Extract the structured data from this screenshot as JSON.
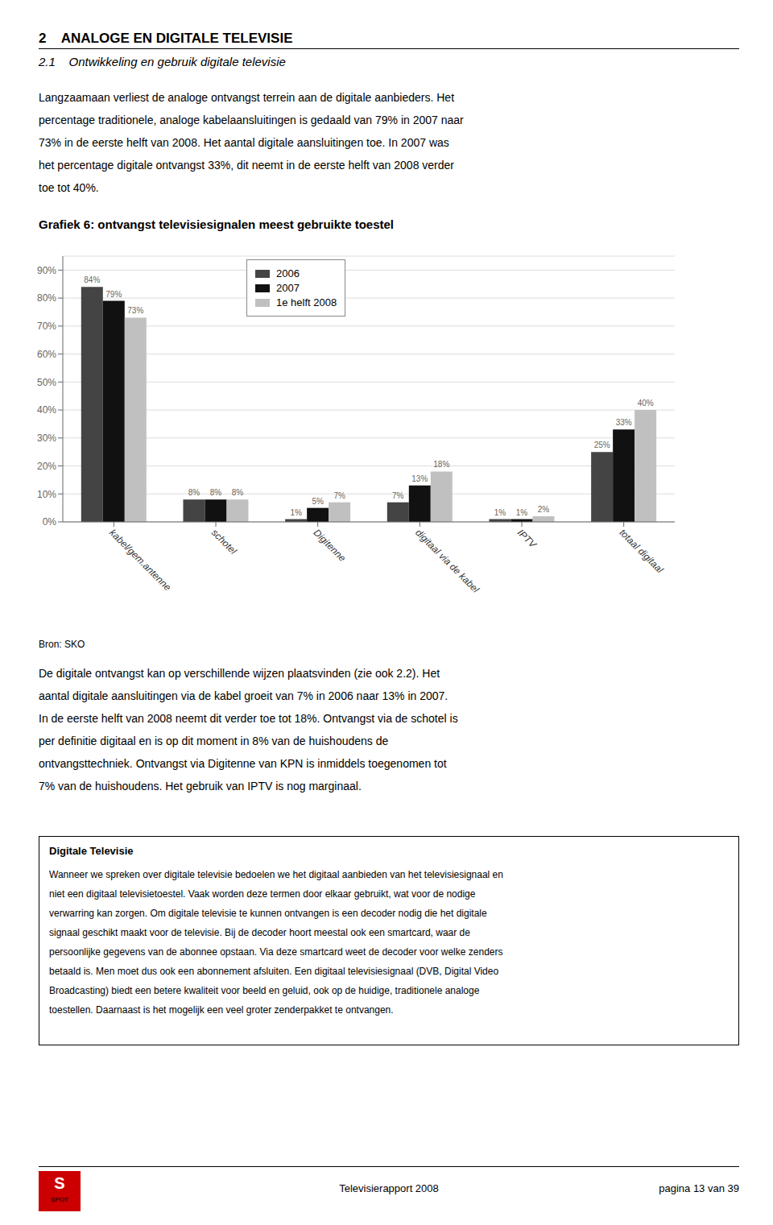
{
  "chart_data": {
    "type": "bar",
    "title": "Grafiek 6: ontvangst televisiesignalen meest gebruikte toestel",
    "categories": [
      "kabel/gem.antenne",
      "schotel",
      "Digitenne",
      "digitaal via de kabel",
      "IPTV",
      "totaal digitaal"
    ],
    "series": [
      {
        "name": "2006",
        "color": "#444444",
        "values": [
          84,
          8,
          1,
          7,
          1,
          25
        ],
        "value_labels": [
          "84%",
          "8%",
          "1%",
          "7%",
          "1%",
          "25%"
        ]
      },
      {
        "name": "2007",
        "color": "#111111",
        "values": [
          79,
          8,
          5,
          13,
          1,
          33
        ],
        "value_labels": [
          "79%",
          "8%",
          "5%",
          "13%",
          "1%",
          "33%"
        ]
      },
      {
        "name": "1e helft 2008",
        "color": "#c0c0c0",
        "values": [
          73,
          8,
          7,
          18,
          2,
          40
        ],
        "value_labels": [
          "73%",
          "8%",
          "7%",
          "18%",
          "2%",
          "40%"
        ]
      }
    ],
    "ylim": [
      0,
      95
    ],
    "yticks": [
      {
        "value": 0,
        "label": "0%"
      },
      {
        "value": 10,
        "label": "10%"
      },
      {
        "value": 20,
        "label": "20%"
      },
      {
        "value": 30,
        "label": "30%"
      },
      {
        "value": 40,
        "label": "40%"
      },
      {
        "value": 50,
        "label": "50%"
      },
      {
        "value": 60,
        "label": "60%"
      },
      {
        "value": 70,
        "label": "70%"
      },
      {
        "value": 80,
        "label": "80%"
      },
      {
        "value": 90,
        "label": "90%"
      }
    ],
    "grid": true,
    "legend": "top",
    "data_labels": true
  },
  "page": {
    "heading1": "2    ANALOGE EN DIGITALE TELEVISIE",
    "heading2": "2.1    Ontwikkeling en gebruik digitale televisie",
    "body_text1_lines": [
      "Langzaamaan verliest de analoge ontvangst terrein aan de digitale aanbieders. Het",
      "percentage traditionele, analoge kabelaansluitingen is gedaald van 79% in 2007 naar",
      "73% in de eerste helft van 2008. Het aantal digitale aansluitingen toe. In 2007 was",
      "het percentage digitale ontvangst 33%, dit neemt in de eerste helft van 2008 verder",
      "toe tot 40%."
    ],
    "source_text": "Bron: SKO",
    "body_text2_lines": [
      "De digitale ontvangst kan op verschillende wijzen plaatsvinden (zie ook 2.2). Het",
      "aantal digitale aansluitingen via de kabel groeit van 7% in 2006 naar 13% in 2007.",
      "In de eerste helft van 2008 neemt dit verder toe tot 18%. Ontvangst via de schotel is",
      "per definitie digitaal en is op dit moment in 8% van de huishoudens de",
      "ontvangsttechniek. Ontvangst via Digitenne van KPN is inmiddels toegenomen tot",
      "7% van de huishoudens. Het gebruik van IPTV is nog marginaal."
    ],
    "footer_box_title": "Digitale Televisie",
    "footer_box_lines": [
      "Wanneer we spreken over digitale televisie bedoelen we het digitaal aanbieden van het televisie​signaal en",
      "niet een digitaal televisie​toestel. Vaak worden deze termen door elkaar gebruikt, wat voor de nodige",
      "verwarring kan zorgen. Om digitale televisie te kunnen ontvangen is een decoder nodig die het digitale",
      "signaal geschikt maakt voor de televisie. Bij de decoder hoort meestal ook een smartcard, waar de",
      "persoonlijke gegevens van de abonnee opstaan. Via deze smartcard weet de decoder voor welke zenders",
      "betaald is. Men moet dus ook een abonnement afsluiten. Een digitaal televisiesignaal (DVB, Digital Video",
      "Broadcasting) biedt een betere kwaliteit voor beeld en geluid, ook op de huidige, traditionele analoge",
      "toestellen. Daarnaast is het mogelijk een veel groter zenderpakket te ontvangen."
    ],
    "logo_letter": "S",
    "logo_name": "SPOT",
    "page_footer": "Televisierapport 2008",
    "page_number": "pagina 13 van 39"
  }
}
